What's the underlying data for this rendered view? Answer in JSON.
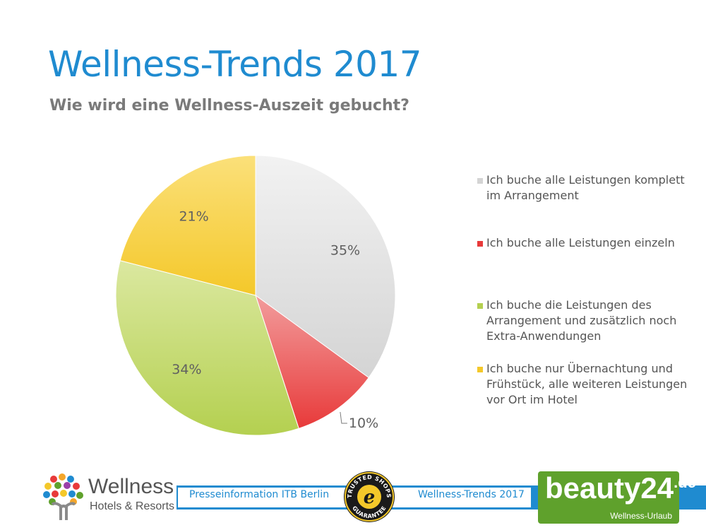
{
  "header": {
    "title": "Wellness-Trends 2017",
    "subtitle": "Wie wird eine Wellness-Auszeit gebucht?"
  },
  "chart_data": {
    "type": "pie",
    "title": "Wie wird eine Wellness-Auszeit gebucht?",
    "categories": [
      "Ich buche alle Leistungen komplett im Arrangement",
      "Ich buche alle Leistungen einzeln",
      "Ich buche die Leistungen des Arrangement und zusätzlich noch Extra-Anwendungen",
      "Ich buche nur Übernachtung und Frühstück, alle weiteren Leistungen vor Ort im Hotel"
    ],
    "values": [
      35,
      10,
      34,
      21
    ],
    "data_labels": [
      "35%",
      "10%",
      "34%",
      "21%"
    ],
    "colors": [
      "#d4d4d4",
      "#e83a3a",
      "#b4d050",
      "#f4c82a"
    ],
    "legend_position": "right"
  },
  "footer": {
    "press_label": "Presseinformation ITB Berlin",
    "trend_label": "Wellness-Trends 2017"
  },
  "logos": {
    "wellness_name": "Wellness",
    "wellness_sub": "Hotels & Resorts",
    "beauty_name": "beauty24",
    "beauty_tld": ".de",
    "beauty_sub": "Wellness-Urlaub",
    "trusted_top": "TRUSTED SHOPS",
    "trusted_bottom": "GUARANTEE",
    "trusted_letter": "e"
  }
}
